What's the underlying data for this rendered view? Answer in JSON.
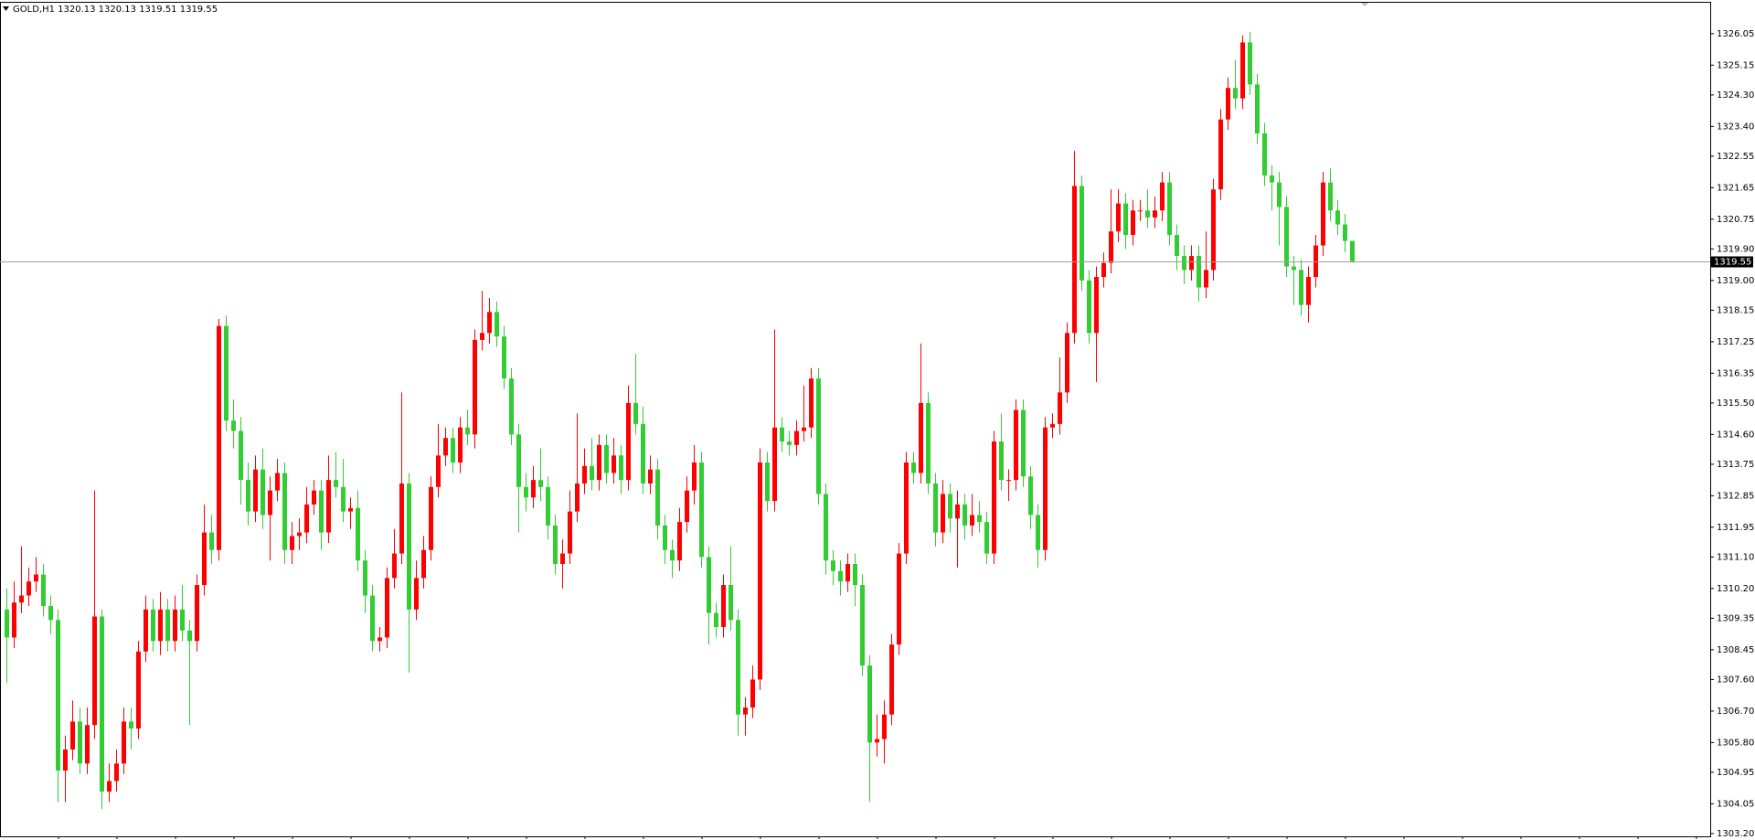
{
  "chart_data": {
    "type": "candlestick",
    "title": "GOLD,H1  1320.13 1320.13 1319.51 1319.55",
    "up_color": "#ff0000",
    "down_color": "#32cd32",
    "ylim": [
      1303.12,
      1326.96
    ],
    "yticks": [
      1326.05,
      1325.15,
      {
        "value": 1324.3,
        "label": "1324.30"
      },
      {
        "value": 1323.4,
        "label": "1323.40"
      },
      1322.55,
      1321.65,
      1320.75,
      {
        "value": 1319.9,
        "label": "1319.90"
      },
      {
        "value": 1319,
        "label": "1319.00"
      },
      1318.15,
      1317.25,
      1316.35,
      {
        "value": 1315.5,
        "label": "1315.50"
      },
      {
        "value": 1314.6,
        "label": "1314.60"
      },
      1313.75,
      1312.85,
      1311.95,
      {
        "value": 1311.1,
        "label": "1311.10"
      },
      {
        "value": 1310.2,
        "label": "1310.20"
      },
      1309.35,
      1308.45,
      {
        "value": 1307.6,
        "label": "1307.60"
      },
      {
        "value": 1306.7,
        "label": "1306.70"
      },
      {
        "value": 1305.8,
        "label": "1305.80"
      },
      1304.95,
      1304.05,
      {
        "value": 1303.2,
        "label": "1303.20"
      }
    ],
    "last_price": 1319.55,
    "open": [
      1309.6,
      1308.8,
      1309.8,
      1310.0,
      1310.4,
      1310.6,
      1309.7,
      1309.3,
      1305.0,
      1305.6,
      1306.4,
      1305.2,
      1306.3,
      1309.4,
      1304.4,
      1304.7,
      1305.2,
      1306.4,
      1306.2,
      1308.4,
      1309.6,
      1308.7,
      1309.6,
      1308.7,
      1309.6,
      1309.0,
      1308.7,
      1310.3,
      1311.8,
      1311.3,
      1317.7,
      1315.0,
      1314.7,
      1313.3,
      1312.4,
      1313.6,
      1312.3,
      1313.0,
      1313.5,
      1311.3,
      1311.7,
      1311.8,
      1312.6,
      1313.0,
      1311.8,
      1313.3,
      1313.1,
      1312.4,
      1312.5,
      1311.0,
      1310.0,
      1308.7,
      1308.8,
      1310.5,
      1311.2,
      1313.2,
      1309.6,
      1310.5,
      1311.3,
      1313.1,
      1314.0,
      1314.5,
      1313.8,
      1314.8,
      1314.6,
      1317.3,
      1317.5,
      1318.1,
      1317.4,
      1316.2,
      1314.6,
      1313.1,
      1312.8,
      1313.3,
      1313.1,
      1312.0,
      1310.9,
      1311.2,
      1312.4,
      1313.2,
      1313.7,
      1313.3,
      1314.3,
      1313.5,
      1314.0,
      1313.3,
      1315.5,
      1314.9,
      1313.2,
      1313.6,
      1312.0,
      1311.3,
      1311.0,
      1312.1,
      1313.0,
      1313.8,
      1311.1,
      1309.5,
      1309.1,
      1310.3,
      1309.3,
      1306.6,
      1306.8,
      1307.6,
      1313.8,
      1312.7,
      1314.8,
      1314.4,
      1314.3,
      1314.7,
      1314.8,
      1316.2,
      1312.9,
      1311.0,
      1310.7,
      1310.4,
      1310.9,
      1310.3,
      1308.0,
      1305.8,
      1305.9,
      1306.6,
      1308.6,
      1311.2,
      1313.8,
      1313.5,
      1315.5,
      1313.2,
      1311.8,
      1312.9,
      1312.2,
      1312.6,
      1312.0,
      1312.3,
      1312.1,
      1311.2,
      1314.4,
      1313.3,
      1313.3,
      1315.3,
      1313.4,
      1312.3,
      1311.3,
      1314.8,
      1314.9,
      1315.8,
      1317.5,
      1321.7,
      1319.0,
      1317.5,
      1319.1,
      1319.5,
      1320.4,
      1321.2,
      1320.3,
      1321.0,
      1321.0,
      1320.8,
      1321.0,
      1321.8,
      1320.3,
      1319.7,
      1319.3,
      1319.7,
      1318.8,
      1319.3,
      1321.6,
      1323.6,
      1324.5,
      1324.2,
      1325.8,
      1324.6,
      1323.2,
      1322.0,
      1321.8,
      1321.1,
      1319.4,
      1319.3,
      1318.3,
      1319.1,
      1320.0,
      1321.8,
      1321.0,
      1320.6,
      1320.13
    ],
    "high": [
      1310.2,
      1310.4,
      1311.4,
      1310.8,
      1311.1,
      1310.9,
      1310.0,
      1309.6,
      1306.0,
      1307.0,
      1306.8,
      1306.8,
      1313.0,
      1309.6,
      1305.2,
      1305.6,
      1306.8,
      1306.8,
      1308.7,
      1310.0,
      1309.9,
      1310.1,
      1309.9,
      1310.0,
      1310.3,
      1309.3,
      1310.6,
      1312.6,
      1312.3,
      1317.9,
      1318.0,
      1315.6,
      1315.1,
      1313.8,
      1314.0,
      1314.2,
      1313.4,
      1313.9,
      1313.8,
      1312.1,
      1312.2,
      1313.1,
      1313.3,
      1313.3,
      1314.0,
      1314.1,
      1313.9,
      1312.8,
      1313.0,
      1311.3,
      1310.3,
      1309.1,
      1310.8,
      1311.9,
      1315.8,
      1313.5,
      1311.0,
      1311.7,
      1313.4,
      1314.9,
      1314.8,
      1314.8,
      1315.1,
      1315.3,
      1317.6,
      1318.7,
      1318.5,
      1318.4,
      1317.7,
      1316.5,
      1314.9,
      1313.5,
      1313.7,
      1314.2,
      1313.4,
      1312.3,
      1311.6,
      1313.0,
      1315.2,
      1314.2,
      1314.5,
      1314.6,
      1314.6,
      1314.5,
      1314.3,
      1316.0,
      1316.9,
      1315.4,
      1314.0,
      1313.9,
      1312.3,
      1311.6,
      1312.5,
      1313.4,
      1314.3,
      1314.1,
      1311.4,
      1309.8,
      1310.6,
      1311.4,
      1309.6,
      1307.1,
      1308.0,
      1314.2,
      1314.1,
      1317.6,
      1315.1,
      1314.7,
      1315.0,
      1316.0,
      1316.5,
      1316.5,
      1313.2,
      1311.3,
      1311.0,
      1311.2,
      1311.2,
      1310.6,
      1308.3,
      1306.6,
      1307.0,
      1308.9,
      1311.5,
      1314.1,
      1314.1,
      1317.2,
      1315.8,
      1313.5,
      1313.3,
      1313.2,
      1313.0,
      1312.9,
      1312.9,
      1312.7,
      1312.4,
      1314.7,
      1315.2,
      1313.6,
      1315.6,
      1315.6,
      1313.7,
      1312.6,
      1315.1,
      1315.2,
      1316.8,
      1317.8,
      1322.7,
      1322.0,
      1319.3,
      1319.4,
      1319.8,
      1321.6,
      1321.6,
      1321.5,
      1321.3,
      1321.3,
      1321.6,
      1321.4,
      1322.1,
      1322.1,
      1320.6,
      1320.0,
      1320.0,
      1320.0,
      1320.4,
      1321.9,
      1323.9,
      1324.8,
      1325.3,
      1326.0,
      1326.1,
      1324.9,
      1323.5,
      1322.3,
      1322.1,
      1321.4,
      1319.7,
      1319.6,
      1319.4,
      1320.3,
      1322.1,
      1322.2,
      1321.3,
      1320.9,
      1320.13
    ],
    "low": [
      1307.5,
      1308.5,
      1309.5,
      1309.7,
      1310.1,
      1309.4,
      1308.9,
      1304.1,
      1304.1,
      1305.3,
      1304.9,
      1304.9,
      1305.9,
      1303.9,
      1304.1,
      1304.4,
      1304.9,
      1305.6,
      1305.9,
      1308.1,
      1308.4,
      1308.3,
      1308.4,
      1308.4,
      1308.7,
      1306.3,
      1308.4,
      1310.0,
      1310.9,
      1311.0,
      1314.7,
      1314.2,
      1312.6,
      1312.0,
      1312.1,
      1311.9,
      1311.0,
      1312.7,
      1310.9,
      1310.9,
      1311.3,
      1311.5,
      1312.3,
      1311.3,
      1311.5,
      1312.8,
      1312.1,
      1311.9,
      1310.7,
      1309.5,
      1308.4,
      1308.4,
      1308.5,
      1310.2,
      1310.9,
      1307.8,
      1309.3,
      1310.2,
      1311.0,
      1312.8,
      1313.7,
      1313.5,
      1313.5,
      1314.3,
      1314.2,
      1317.0,
      1317.2,
      1317.1,
      1315.9,
      1314.3,
      1311.8,
      1312.4,
      1312.5,
      1312.7,
      1311.6,
      1310.6,
      1310.2,
      1310.9,
      1312.1,
      1312.9,
      1313.0,
      1313.0,
      1313.2,
      1313.2,
      1312.9,
      1313.0,
      1314.6,
      1312.9,
      1312.9,
      1311.6,
      1310.9,
      1310.5,
      1310.7,
      1311.8,
      1312.6,
      1310.8,
      1308.6,
      1308.8,
      1308.8,
      1309.0,
      1306.0,
      1306.0,
      1306.5,
      1307.3,
      1312.4,
      1312.4,
      1314.1,
      1314.0,
      1314.0,
      1314.4,
      1314.5,
      1312.6,
      1310.6,
      1310.3,
      1310.0,
      1310.1,
      1309.7,
      1307.7,
      1304.1,
      1305.4,
      1305.2,
      1306.3,
      1308.3,
      1310.9,
      1313.2,
      1313.2,
      1312.9,
      1311.4,
      1311.5,
      1311.8,
      1310.8,
      1311.6,
      1311.7,
      1311.8,
      1310.9,
      1310.9,
      1313.0,
      1312.7,
      1313.0,
      1313.1,
      1311.9,
      1310.8,
      1311.0,
      1314.5,
      1314.6,
      1315.5,
      1317.2,
      1318.7,
      1317.2,
      1316.1,
      1318.8,
      1319.2,
      1320.1,
      1319.9,
      1320.0,
      1320.7,
      1320.5,
      1320.5,
      1320.7,
      1320.0,
      1319.3,
      1318.9,
      1319.0,
      1318.4,
      1318.5,
      1319.0,
      1321.3,
      1323.3,
      1323.9,
      1323.9,
      1324.3,
      1322.9,
      1321.7,
      1321.0,
      1320.0,
      1319.1,
      1318.3,
      1318.0,
      1317.8,
      1318.8,
      1319.7,
      1320.7,
      1320.3,
      1319.8,
      1319.51
    ],
    "close": [
      1308.8,
      1309.8,
      1310.0,
      1310.4,
      1310.6,
      1309.7,
      1309.3,
      1305.0,
      1305.6,
      1306.4,
      1305.2,
      1306.3,
      1309.4,
      1304.4,
      1304.7,
      1305.2,
      1306.4,
      1306.2,
      1308.4,
      1309.6,
      1308.7,
      1309.6,
      1308.7,
      1309.6,
      1309.0,
      1308.7,
      1310.3,
      1311.8,
      1311.3,
      1317.7,
      1315.0,
      1314.7,
      1313.3,
      1312.4,
      1313.6,
      1312.3,
      1313.0,
      1313.5,
      1311.3,
      1311.7,
      1311.8,
      1312.6,
      1313.0,
      1311.8,
      1313.3,
      1313.1,
      1312.4,
      1312.5,
      1311.0,
      1310.0,
      1308.7,
      1308.8,
      1310.5,
      1311.2,
      1313.2,
      1309.6,
      1310.5,
      1311.3,
      1313.1,
      1314.0,
      1314.5,
      1313.8,
      1314.8,
      1314.6,
      1317.3,
      1317.5,
      1318.1,
      1317.4,
      1316.2,
      1314.6,
      1313.1,
      1312.8,
      1313.3,
      1313.1,
      1312.0,
      1310.9,
      1311.2,
      1312.4,
      1313.2,
      1313.7,
      1313.3,
      1314.3,
      1313.5,
      1314.0,
      1313.3,
      1315.5,
      1314.9,
      1313.2,
      1313.6,
      1312.0,
      1311.3,
      1311.0,
      1312.1,
      1313.0,
      1313.8,
      1311.1,
      1309.5,
      1309.1,
      1310.3,
      1309.3,
      1306.6,
      1306.8,
      1307.6,
      1313.8,
      1312.7,
      1314.8,
      1314.4,
      1314.3,
      1314.7,
      1314.8,
      1316.2,
      1312.9,
      1311.0,
      1310.7,
      1310.4,
      1310.9,
      1310.3,
      1308.0,
      1305.8,
      1305.9,
      1306.6,
      1308.6,
      1311.2,
      1313.8,
      1313.5,
      1315.5,
      1313.2,
      1311.8,
      1312.9,
      1312.2,
      1312.6,
      1312.0,
      1312.3,
      1312.1,
      1311.2,
      1314.4,
      1313.3,
      1313.3,
      1315.3,
      1313.4,
      1312.3,
      1311.3,
      1314.8,
      1314.9,
      1315.8,
      1317.5,
      1321.7,
      1319.0,
      1317.5,
      1319.1,
      1319.5,
      1320.4,
      1321.2,
      1320.3,
      1321.0,
      1321.0,
      1320.8,
      1321.0,
      1321.8,
      1320.3,
      1319.7,
      1319.3,
      1319.7,
      1318.8,
      1319.3,
      1321.6,
      1323.6,
      1324.5,
      1324.2,
      1325.8,
      1324.6,
      1323.2,
      1322.0,
      1321.8,
      1321.1,
      1319.4,
      1319.3,
      1318.3,
      1319.1,
      1320.0,
      1321.8,
      1321.0,
      1320.6,
      1320.13,
      1319.55
    ]
  }
}
